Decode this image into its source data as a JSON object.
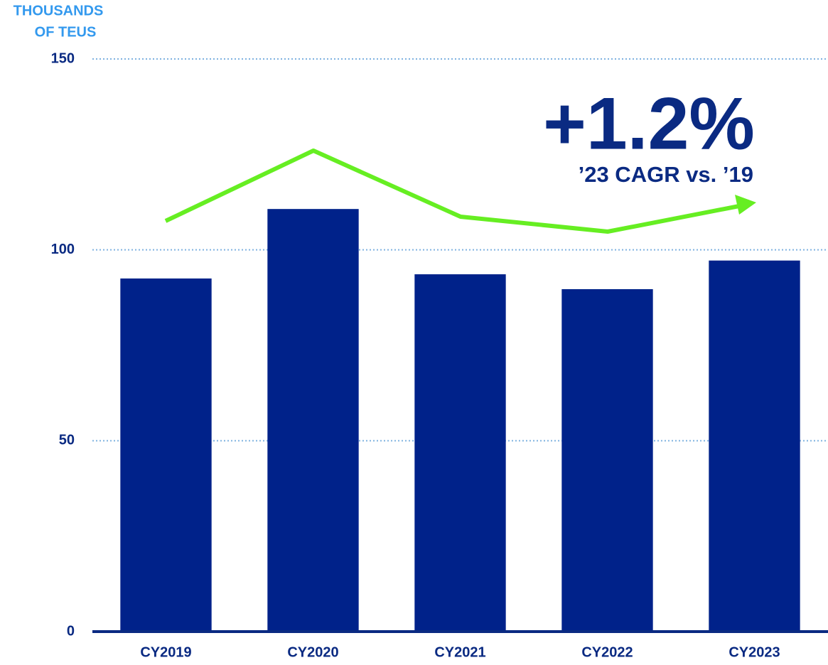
{
  "chart_data": {
    "type": "bar",
    "y_label": [
      "THOUSANDS",
      "OF TEUS"
    ],
    "annotations": [
      "+1.2%",
      "’23 CAGR vs. ’19"
    ],
    "categories": [
      "CY2019",
      "CY2020",
      "CY2021",
      "CY2022",
      "CY2023"
    ],
    "values": [
      92.5,
      110.7,
      93.6,
      89.7,
      97.2
    ],
    "color": "#00228a",
    "ylim": [
      0,
      150
    ],
    "yticks": [
      0,
      50,
      100,
      150
    ],
    "grid": true
  }
}
